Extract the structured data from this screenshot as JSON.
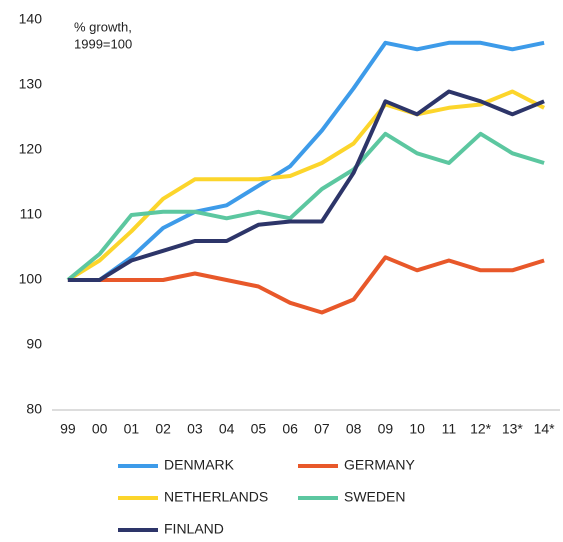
{
  "chart_data": {
    "type": "line",
    "annotation": [
      "% growth,",
      "1999=100"
    ],
    "categories": [
      "99",
      "00",
      "01",
      "02",
      "03",
      "04",
      "05",
      "06",
      "07",
      "08",
      "09",
      "10",
      "11",
      "12*",
      "13*",
      "14*"
    ],
    "series": [
      {
        "name": "DENMARK",
        "color": "#3d9be9",
        "values": [
          100,
          100,
          103.5,
          108,
          110.5,
          111.5,
          114.5,
          117.5,
          123,
          129.5,
          136.5,
          135.5,
          136.5,
          136.5,
          135.5,
          136.5
        ]
      },
      {
        "name": "GERMANY",
        "color": "#e8582a",
        "values": [
          100,
          100,
          100,
          100,
          101,
          100,
          99,
          96.5,
          95,
          97,
          103.5,
          101.5,
          103,
          101.5,
          101.5,
          103
        ]
      },
      {
        "name": "NETHERLANDS",
        "color": "#fcd52b",
        "values": [
          100,
          103,
          107.5,
          112.5,
          115.5,
          115.5,
          115.5,
          116,
          118,
          121,
          127,
          125.5,
          126.5,
          127,
          129,
          126.5
        ]
      },
      {
        "name": "SWEDEN",
        "color": "#5cc7a0",
        "values": [
          100,
          104,
          110,
          110.5,
          110.5,
          109.5,
          110.5,
          109.5,
          114,
          117,
          122.5,
          119.5,
          118,
          122.5,
          119.5,
          118
        ]
      },
      {
        "name": "FINLAND",
        "color": "#2d3569",
        "values": [
          100,
          100,
          103,
          104.5,
          106,
          106,
          108.5,
          109,
          109,
          116.5,
          127.5,
          125.5,
          129,
          127.5,
          125.5,
          127.5
        ]
      }
    ],
    "ylim": [
      80,
      140
    ],
    "yticks": [
      80,
      90,
      100,
      110,
      120,
      130,
      140
    ],
    "grid": false
  }
}
